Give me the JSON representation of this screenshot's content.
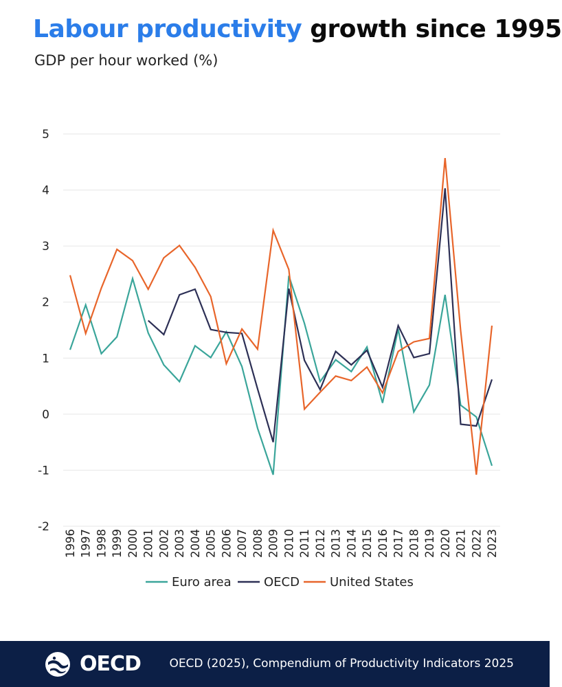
{
  "header": {
    "title_highlight": "Labour productivity",
    "title_rest": "growth since 1995",
    "subtitle": "GDP per hour worked (%)"
  },
  "footer": {
    "logo_text": "OECD",
    "source": "OECD (2025), Compendium of Productivity Indicators 2025",
    "background": "#0c1f46",
    "logo_icon": "oecd-globe-icon"
  },
  "colors": {
    "title_accent": "#2b7de9",
    "euro_area": "#3aa59a",
    "oecd": "#2c2f55",
    "united_states": "#e8652a",
    "gridline": "#e6e6e6"
  },
  "chart_data": {
    "type": "line",
    "title": "Labour productivity growth since 1995",
    "subtitle": "GDP per hour worked (%)",
    "xlabel": "",
    "ylabel": "",
    "ylim": [
      -2,
      5
    ],
    "yticks": [
      -2,
      -1,
      0,
      1,
      2,
      3,
      4,
      5
    ],
    "ytick_labels": [
      "-2",
      "-1",
      "0",
      "1",
      "2",
      "3",
      "4",
      "5"
    ],
    "grid": true,
    "legend_position": "bottom",
    "x": [
      "1996",
      "1997",
      "1998",
      "1999",
      "2000",
      "2001",
      "2002",
      "2003",
      "2004",
      "2005",
      "2006",
      "2007",
      "2008",
      "2009",
      "2010",
      "2011",
      "2012",
      "2013",
      "2014",
      "2015",
      "2016",
      "2017",
      "2018",
      "2019",
      "2020",
      "2021",
      "2022",
      "2023"
    ],
    "series": [
      {
        "name": "Euro area",
        "color": "#3aa59a",
        "values": [
          1.15,
          1.95,
          1.08,
          1.38,
          2.42,
          1.45,
          0.88,
          0.58,
          1.22,
          1.01,
          1.47,
          0.85,
          -0.25,
          -1.08,
          2.47,
          1.62,
          0.58,
          0.97,
          0.76,
          1.2,
          0.2,
          1.52,
          0.04,
          0.52,
          2.13,
          0.16,
          -0.05,
          -0.92
        ]
      },
      {
        "name": "OECD",
        "color": "#2c2f55",
        "values": [
          null,
          null,
          null,
          null,
          null,
          1.67,
          1.42,
          2.13,
          2.23,
          1.51,
          1.46,
          1.44,
          0.45,
          -0.5,
          2.24,
          0.96,
          0.44,
          1.12,
          0.88,
          1.14,
          0.48,
          1.58,
          1.01,
          1.08,
          4.03,
          -0.18,
          -0.21,
          0.62
        ]
      },
      {
        "name": "United States",
        "color": "#e8652a",
        "values": [
          2.48,
          1.44,
          2.25,
          2.94,
          2.74,
          2.23,
          2.79,
          3.01,
          2.62,
          2.1,
          0.9,
          1.52,
          1.16,
          3.28,
          2.58,
          0.09,
          0.39,
          0.68,
          0.6,
          0.84,
          0.38,
          1.12,
          1.29,
          1.35,
          4.57,
          1.49,
          -1.08,
          1.58
        ]
      }
    ]
  }
}
